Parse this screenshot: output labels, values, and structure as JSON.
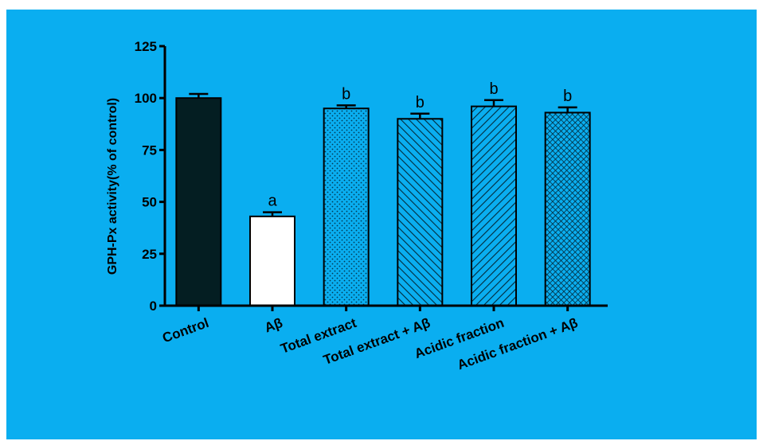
{
  "chart_data": {
    "type": "bar",
    "title": "",
    "xlabel": "",
    "ylabel": "GPH-Px activity(% of control)",
    "ylim": [
      0,
      125
    ],
    "yticks": [
      0,
      25,
      50,
      75,
      100,
      125
    ],
    "grid": false,
    "categories": [
      "Control",
      "Aβ",
      "Total extract",
      "Total extract + Aβ",
      "Acidic fraction",
      "Acidic fraction + Aβ"
    ],
    "values": [
      100,
      43,
      95,
      90,
      96,
      93
    ],
    "errors": [
      2,
      2,
      1.5,
      2.5,
      3,
      2.5
    ],
    "significance_labels": [
      "",
      "a",
      "b",
      "b",
      "b",
      "b"
    ],
    "bar_fills": [
      "solid-black",
      "white",
      "dotted",
      "diagonal-hatch",
      "diagonal-hatch-reverse",
      "crosshatch"
    ],
    "colors": {
      "background": "#0aaef0",
      "bar_dark": "#041e22",
      "bar_stroke": "#000000"
    }
  }
}
